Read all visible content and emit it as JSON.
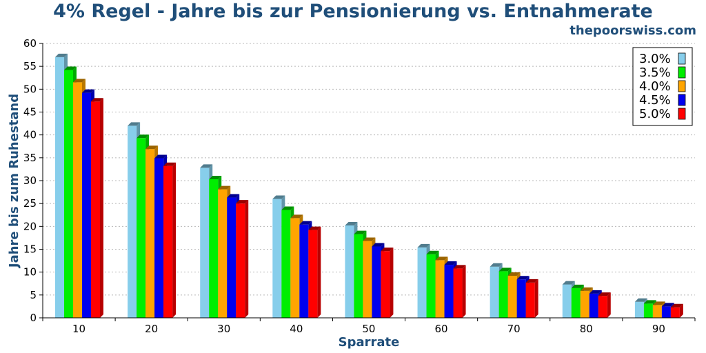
{
  "chart_data": {
    "type": "bar",
    "title": "4% Regel - Jahre bis zur Pensionierung vs. Entnahmerate",
    "source": "thepoorswiss.com",
    "xlabel": "Sparrate",
    "ylabel": "Jahre bis zum Ruhestand",
    "ylim": [
      0,
      60
    ],
    "yticks": [
      0,
      5,
      10,
      15,
      20,
      25,
      30,
      35,
      40,
      45,
      50,
      55,
      60
    ],
    "grid": true,
    "legend_position": "top-right",
    "categories": [
      "10",
      "20",
      "30",
      "40",
      "50",
      "60",
      "70",
      "80",
      "90"
    ],
    "series": [
      {
        "name": "3.0%",
        "color": "#87ceeb",
        "values": [
          57,
          42,
          32.8,
          26,
          20.2,
          15.4,
          11.2,
          7.3,
          3.5
        ]
      },
      {
        "name": "3.5%",
        "color": "#00ee00",
        "values": [
          54.2,
          39.3,
          30.3,
          23.6,
          18.3,
          13.9,
          10.2,
          6.5,
          3.1
        ]
      },
      {
        "name": "4.0%",
        "color": "#ffa500",
        "values": [
          51.5,
          36.9,
          28.1,
          21.8,
          16.8,
          12.6,
          9.2,
          5.9,
          2.8
        ]
      },
      {
        "name": "4.5%",
        "color": "#0000ee",
        "values": [
          49.2,
          34.9,
          26.3,
          20.4,
          15.6,
          11.6,
          8.4,
          5.3,
          2.5
        ]
      },
      {
        "name": "5.0%",
        "color": "#ff0000",
        "values": [
          47.3,
          33.2,
          25,
          19.2,
          14.6,
          10.8,
          7.7,
          4.8,
          2.3
        ]
      }
    ]
  }
}
